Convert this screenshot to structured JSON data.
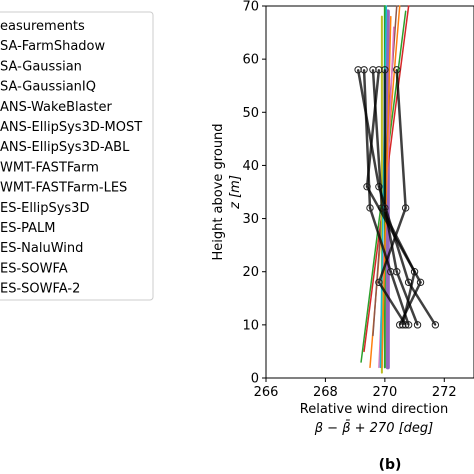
{
  "chart_data": {
    "type": "line",
    "panel_label": "(b)",
    "xlabel_line1": "Relative wind direction",
    "xlabel_line2": "β − β̄ + 270 [deg]",
    "ylabel_line1": "Height above ground",
    "ylabel_line2": "z [m]",
    "xlim": [
      266,
      273
    ],
    "ylim": [
      0,
      70
    ],
    "xticks": [
      266,
      268,
      270,
      272
    ],
    "yticks": [
      0,
      10,
      20,
      30,
      40,
      50,
      60,
      70
    ],
    "grid": false,
    "legend_placement": "left",
    "legend": [
      {
        "label": "easurements",
        "color": "#333333",
        "marker": true
      },
      {
        "label": "SA-FarmShadow",
        "color": "#1f77b4"
      },
      {
        "label": "SA-Gaussian",
        "color": "#ff7f0e"
      },
      {
        "label": "SA-GaussianIQ",
        "color": "#2ca02c"
      },
      {
        "label": "ANS-WakeBlaster",
        "color": "#d62728"
      },
      {
        "label": "ANS-EllipSys3D-MOST",
        "color": "#9467bd"
      },
      {
        "label": "ANS-EllipSys3D-ABL",
        "color": "#8c564b"
      },
      {
        "label": "WMT-FASTFarm",
        "color": "#e377c2"
      },
      {
        "label": "WMT-FASTFarm-LES",
        "color": "#7f7f7f"
      },
      {
        "label": "ES-EllipSys3D",
        "color": "#bcbd22"
      },
      {
        "label": "ES-PALM",
        "color": "#17becf"
      },
      {
        "label": "ES-NaluWind",
        "color": "#1f77b4"
      },
      {
        "label": "ES-SOWFA",
        "color": "#ff7f0e"
      },
      {
        "label": "ES-SOWFA-2",
        "color": "#2ca02c"
      }
    ],
    "measurement_series": [
      {
        "x": [
          269.1,
          269.8,
          270.8,
          271.7
        ],
        "y": [
          58,
          36,
          18,
          10
        ]
      },
      {
        "x": [
          269.3,
          269.5,
          270.2,
          270.8
        ],
        "y": [
          58,
          32,
          20,
          10
        ]
      },
      {
        "x": [
          269.6,
          269.9,
          271.0,
          270.6
        ],
        "y": [
          58,
          32,
          20,
          10
        ]
      },
      {
        "x": [
          269.8,
          269.4,
          271.2,
          270.5
        ],
        "y": [
          58,
          36,
          18,
          10
        ]
      },
      {
        "x": [
          270.0,
          270.0,
          270.4,
          271.1
        ],
        "y": [
          58,
          32,
          20,
          10
        ]
      },
      {
        "x": [
          270.4,
          270.7,
          269.8,
          270.7
        ],
        "y": [
          58,
          32,
          18,
          10
        ]
      }
    ],
    "model_series": [
      {
        "color": "#2ca02c",
        "width": 1.5,
        "x": [
          269.2,
          270.7
        ],
        "y": [
          3,
          69
        ]
      },
      {
        "color": "#9467bd",
        "width": 4,
        "x": [
          270.1,
          270.1
        ],
        "y": [
          2,
          69
        ]
      },
      {
        "color": "#d62728",
        "width": 1.5,
        "x": [
          269.3,
          270.8
        ],
        "y": [
          5,
          70
        ]
      },
      {
        "color": "#ff7f0e",
        "width": 1.5,
        "x": [
          269.5,
          270.5
        ],
        "y": [
          2,
          70
        ]
      },
      {
        "color": "#8c564b",
        "width": 1.5,
        "x": [
          269.6,
          270.4
        ],
        "y": [
          8,
          70
        ]
      },
      {
        "color": "#e377c2",
        "width": 1.5,
        "x": [
          269.8,
          270.3
        ],
        "y": [
          2,
          66
        ]
      },
      {
        "color": "#bcbd22",
        "width": 2,
        "x": [
          269.9,
          269.9
        ],
        "y": [
          1,
          68
        ]
      },
      {
        "color": "#2ca02c",
        "width": 2,
        "x": [
          270.0,
          270.0
        ],
        "y": [
          2,
          70
        ]
      },
      {
        "color": "#ff7f0e",
        "width": 1.5,
        "x": [
          269.9,
          270.2
        ],
        "y": [
          2,
          68
        ]
      },
      {
        "color": "#17becf",
        "width": 1.5,
        "x": [
          269.85,
          270.05
        ],
        "y": [
          2,
          70
        ]
      }
    ]
  }
}
